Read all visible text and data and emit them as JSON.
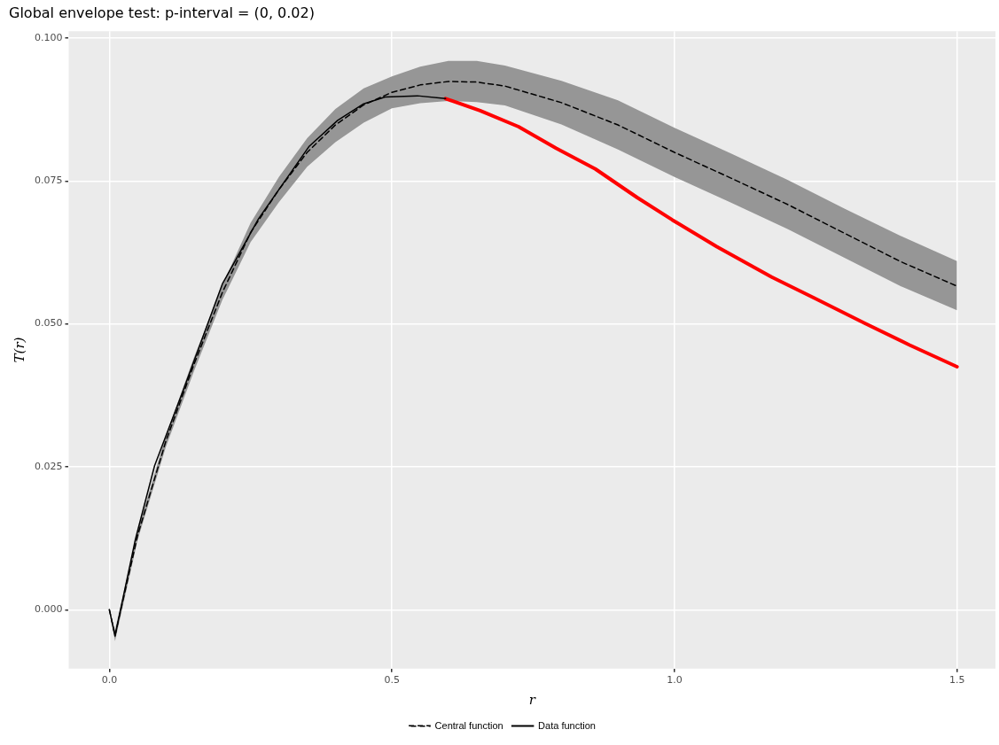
{
  "chart_data": {
    "type": "line",
    "title": "Global envelope test: p-interval = (0, 0.02)",
    "xlabel": "r",
    "ylabel": "T(r)",
    "xlim": [
      -0.072,
      1.568
    ],
    "xticks": [
      {
        "value": 0,
        "label": "0.0"
      },
      0.5,
      {
        "value": 1,
        "label": "1.0"
      },
      1.5
    ],
    "ylim": [
      -0.0103,
      0.1012
    ],
    "yticks": [
      {
        "value": 0,
        "label": "0.000"
      },
      0.025,
      {
        "value": 0.05,
        "label": "0.050"
      },
      0.075,
      {
        "value": 0.1,
        "label": "0.100"
      }
    ],
    "grid": true,
    "legend": "bottom",
    "marker": "none",
    "series": [
      {
        "name": "Central function",
        "color": "#000000",
        "line_style": "dashed",
        "x": [
          0,
          0.01,
          0.05,
          0.1,
          0.15,
          0.2,
          0.25,
          0.3,
          0.35,
          0.4,
          0.45,
          0.5,
          0.55,
          0.6,
          0.65,
          0.7,
          0.8,
          0.9,
          1.0,
          1.1,
          1.2,
          1.3,
          1.4,
          1.5
        ],
        "values": [
          0,
          -0.0045,
          0.013,
          0.0295,
          0.043,
          0.0555,
          0.066,
          0.0735,
          0.08,
          0.0848,
          0.0883,
          0.0905,
          0.0918,
          0.0924,
          0.0923,
          0.0916,
          0.0887,
          0.0848,
          0.08,
          0.0755,
          0.0709,
          0.0659,
          0.0609,
          0.0566
        ],
        "upper": [
          0,
          -0.0035,
          0.0138,
          0.0305,
          0.0442,
          0.0568,
          0.0677,
          0.0757,
          0.0825,
          0.0876,
          0.0912,
          0.0933,
          0.095,
          0.096,
          0.096,
          0.0952,
          0.0925,
          0.0891,
          0.0843,
          0.0798,
          0.0752,
          0.0702,
          0.0654,
          0.061
        ],
        "lower": [
          0,
          -0.0055,
          0.0122,
          0.0285,
          0.0418,
          0.0542,
          0.0643,
          0.0713,
          0.0775,
          0.0818,
          0.0852,
          0.0877,
          0.0886,
          0.089,
          0.0888,
          0.0882,
          0.0849,
          0.0805,
          0.0757,
          0.0712,
          0.0666,
          0.0616,
          0.0566,
          0.0524
        ]
      },
      {
        "name": "Data function",
        "color": "#000000",
        "line_style": "solid",
        "x": [
          0,
          0.01,
          0.046,
          0.08,
          0.13,
          0.2,
          0.264,
          0.353,
          0.404,
          0.45,
          0.488,
          0.545,
          0.595
        ],
        "values": [
          0,
          -0.0046,
          0.0123,
          0.0252,
          0.0382,
          0.057,
          0.0684,
          0.081,
          0.0856,
          0.0885,
          0.0897,
          0.0899,
          0.0894
        ]
      },
      {
        "color": "#ff0000",
        "line_style": "solid",
        "x": [
          0.595,
          0.656,
          0.724,
          0.791,
          0.86,
          0.934,
          0.996,
          1.075,
          1.172,
          1.246,
          1.337,
          1.416,
          1.5
        ],
        "values": [
          0.0894,
          0.0873,
          0.0845,
          0.0807,
          0.0771,
          0.0721,
          0.0682,
          0.0635,
          0.0582,
          0.0546,
          0.0501,
          0.0463,
          0.0425
        ]
      }
    ]
  }
}
